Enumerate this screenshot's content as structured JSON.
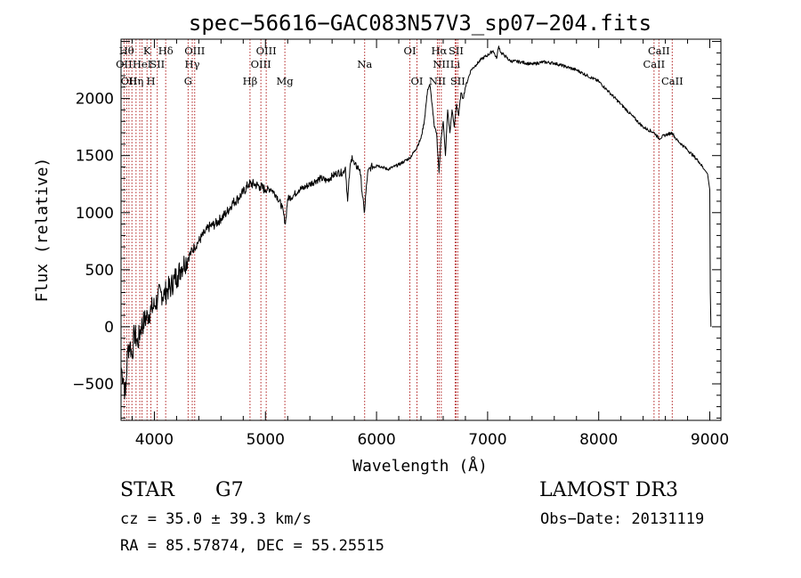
{
  "chart_data": {
    "type": "line",
    "title": "spec−56616−GAC083N57V3_sp07−204.fits",
    "xlabel": "Wavelength (Å)",
    "ylabel": "Flux (relative)",
    "xlim": [
      3700,
      9100
    ],
    "ylim": [
      -820,
      2520
    ],
    "xticks": [
      4000,
      5000,
      6000,
      7000,
      8000,
      9000
    ],
    "yticks": [
      -500,
      0,
      500,
      1000,
      1500,
      2000
    ],
    "line_color": "#000000",
    "marker_color": "#b22222",
    "spectrum": {
      "x": [
        3700,
        3720,
        3740,
        3760,
        3780,
        3800,
        3820,
        3850,
        3880,
        3910,
        3940,
        3970,
        4000,
        4030,
        4060,
        4090,
        4120,
        4150,
        4180,
        4210,
        4240,
        4270,
        4300,
        4330,
        4360,
        4400,
        4450,
        4500,
        4550,
        4600,
        4650,
        4700,
        4750,
        4800,
        4850,
        4900,
        4950,
        5000,
        5050,
        5100,
        5150,
        5180,
        5200,
        5250,
        5300,
        5350,
        5400,
        5450,
        5500,
        5550,
        5600,
        5650,
        5700,
        5720,
        5740,
        5760,
        5780,
        5800,
        5850,
        5890,
        5920,
        5950,
        6000,
        6050,
        6100,
        6150,
        6200,
        6250,
        6300,
        6350,
        6400,
        6430,
        6460,
        6480,
        6500,
        6520,
        6540,
        6563,
        6580,
        6600,
        6620,
        6640,
        6660,
        6680,
        6700,
        6720,
        6740,
        6760,
        6780,
        6800,
        6850,
        6900,
        6950,
        7000,
        7050,
        7080,
        7100,
        7120,
        7150,
        7200,
        7300,
        7400,
        7500,
        7600,
        7700,
        7800,
        7900,
        8000,
        8100,
        8200,
        8300,
        8400,
        8500,
        8542,
        8600,
        8662,
        8700,
        8800,
        8850,
        8900,
        8950,
        8980,
        9000,
        9005,
        9010
      ],
      "y": [
        -350,
        -450,
        -600,
        -200,
        -150,
        -250,
        -50,
        -150,
        0,
        50,
        100,
        150,
        180,
        250,
        300,
        280,
        330,
        350,
        420,
        450,
        520,
        560,
        600,
        650,
        700,
        750,
        820,
        880,
        900,
        950,
        1000,
        1080,
        1120,
        1180,
        1250,
        1250,
        1230,
        1200,
        1210,
        1150,
        1050,
        900,
        1120,
        1150,
        1200,
        1220,
        1250,
        1280,
        1300,
        1280,
        1320,
        1350,
        1350,
        1400,
        1100,
        1380,
        1500,
        1420,
        1380,
        1000,
        1350,
        1400,
        1420,
        1400,
        1380,
        1400,
        1420,
        1450,
        1480,
        1550,
        1650,
        1800,
        2080,
        2120,
        1950,
        1750,
        1700,
        1350,
        1650,
        1800,
        1500,
        1900,
        1700,
        1900,
        1750,
        1950,
        1850,
        2050,
        2000,
        2100,
        2250,
        2300,
        2350,
        2380,
        2420,
        2350,
        2460,
        2400,
        2380,
        2330,
        2320,
        2300,
        2320,
        2310,
        2280,
        2250,
        2200,
        2150,
        2050,
        1950,
        1850,
        1750,
        1700,
        1650,
        1680,
        1700,
        1640,
        1550,
        1500,
        1450,
        1380,
        1340,
        1200,
        300,
        0
      ]
    },
    "lines": [
      {
        "wave": 3727,
        "label": "OII",
        "row": 2
      },
      {
        "wave": 3750,
        "label": "Hθ",
        "row": 1
      },
      {
        "wave": 3771,
        "label": "OII",
        "row": 3
      },
      {
        "wave": 3798,
        "label": "",
        "row": 0
      },
      {
        "wave": 3835,
        "label": "Hη",
        "row": 3
      },
      {
        "wave": 3869,
        "label": "",
        "row": 0
      },
      {
        "wave": 3889,
        "label": "HeI",
        "row": 2
      },
      {
        "wave": 3934,
        "label": "K",
        "row": 1
      },
      {
        "wave": 3969,
        "label": "H",
        "row": 3
      },
      {
        "wave": 4026,
        "label": "SII",
        "row": 2
      },
      {
        "wave": 4102,
        "label": "Hδ",
        "row": 1
      },
      {
        "wave": 4304,
        "label": "G",
        "row": 3
      },
      {
        "wave": 4341,
        "label": "Hγ",
        "row": 2
      },
      {
        "wave": 4363,
        "label": "OIII",
        "row": 1
      },
      {
        "wave": 4861,
        "label": "Hβ",
        "row": 3
      },
      {
        "wave": 4959,
        "label": "OIII",
        "row": 2
      },
      {
        "wave": 5007,
        "label": "OIII",
        "row": 1
      },
      {
        "wave": 5175,
        "label": "Mg",
        "row": 3
      },
      {
        "wave": 5893,
        "label": "Na",
        "row": 2
      },
      {
        "wave": 6300,
        "label": "OI",
        "row": 1
      },
      {
        "wave": 6364,
        "label": "OI",
        "row": 3
      },
      {
        "wave": 6548,
        "label": "NII",
        "row": 3
      },
      {
        "wave": 6563,
        "label": "Hα",
        "row": 1
      },
      {
        "wave": 6583,
        "label": "NII",
        "row": 2
      },
      {
        "wave": 6708,
        "label": "Li",
        "row": 2
      },
      {
        "wave": 6716,
        "label": "SII",
        "row": 1
      },
      {
        "wave": 6731,
        "label": "SII",
        "row": 3
      },
      {
        "wave": 8498,
        "label": "CaII",
        "row": 2
      },
      {
        "wave": 8542,
        "label": "CaII",
        "row": 1
      },
      {
        "wave": 8662,
        "label": "CaII",
        "row": 3
      }
    ]
  },
  "info": {
    "object_type": "STAR",
    "subclass": "G7",
    "survey": "LAMOST DR3",
    "redshift": "cz = 35.0 ± 39.3 km/s",
    "obs_date": "Obs−Date: 20131119",
    "coords": "RA =  85.57874, DEC =  55.25515"
  }
}
